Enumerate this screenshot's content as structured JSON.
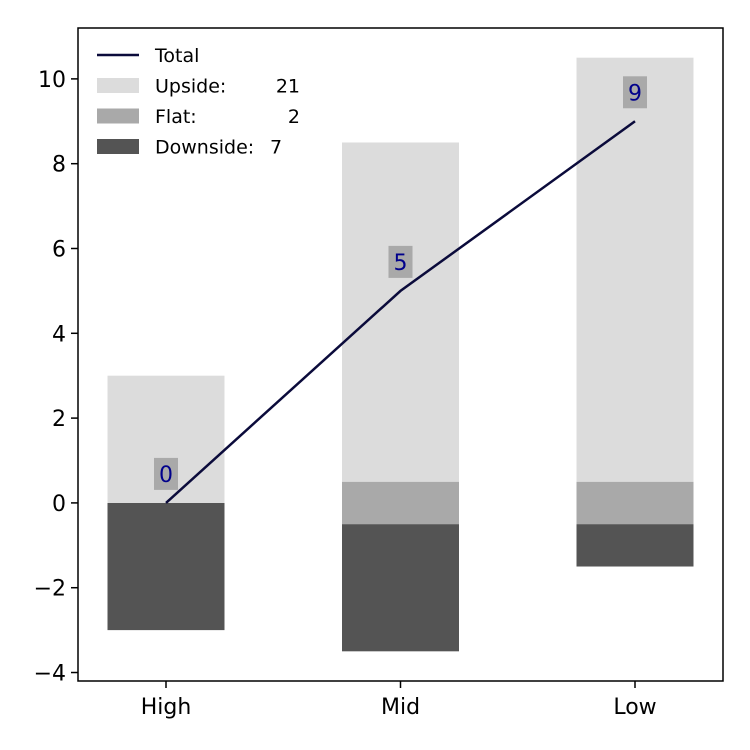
{
  "chart_data": {
    "type": "bar",
    "categories": [
      "High",
      "Mid",
      "Low"
    ],
    "stack": {
      "downside": {
        "bottom": [
          -3.0,
          -3.5,
          -1.5
        ],
        "top": [
          0.0,
          -0.5,
          -0.5
        ]
      },
      "flat": {
        "bottom": [
          0.0,
          -0.5,
          -0.5
        ],
        "top": [
          0.0,
          0.5,
          0.5
        ]
      },
      "upside": {
        "bottom": [
          0.0,
          0.5,
          0.5
        ],
        "top": [
          3.0,
          8.5,
          10.5
        ]
      }
    },
    "line": {
      "name": "Total",
      "values": [
        0,
        5,
        9
      ]
    },
    "data_labels": [
      "0",
      "5",
      "9"
    ],
    "legend": [
      {
        "key": "total",
        "label": "Total",
        "count": ""
      },
      {
        "key": "upside",
        "label": "Upside:",
        "count": "21"
      },
      {
        "key": "flat",
        "label": "Flat:",
        "count": "2"
      },
      {
        "key": "downside",
        "label": "Downside:",
        "count": "7"
      }
    ],
    "ylim": [
      -4.2,
      11.2
    ],
    "yticks": [
      -4,
      -2,
      0,
      2,
      4,
      6,
      8,
      10
    ],
    "ytick_labels": [
      "−4",
      "−2",
      "0",
      "2",
      "4",
      "6",
      "8",
      "10"
    ],
    "legend_position": "top-left",
    "grid": false,
    "colors": {
      "upside": "#dcdcdc",
      "flat": "#a9a9a9",
      "downside": "#545454",
      "line": "#0b0b3b",
      "label_text": "#00008b",
      "label_box": "#a9a9a9"
    },
    "title": "",
    "xlabel": "",
    "ylabel": ""
  }
}
